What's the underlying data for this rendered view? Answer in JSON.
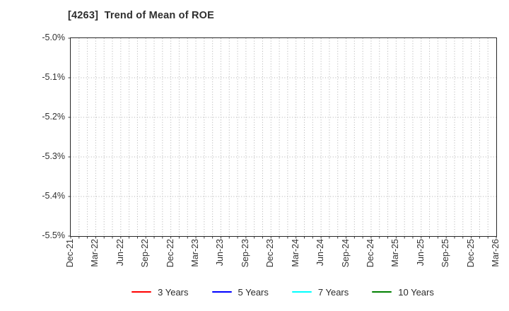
{
  "chart_data": {
    "type": "line",
    "title": "[4263]  Trend of Mean of ROE",
    "x_tick_labels": [
      "Dec-21",
      "Mar-22",
      "Jun-22",
      "Sep-22",
      "Dec-22",
      "Mar-23",
      "Jun-23",
      "Sep-23",
      "Dec-23",
      "Mar-24",
      "Jun-24",
      "Sep-24",
      "Dec-24",
      "Mar-25",
      "Jun-25",
      "Sep-25",
      "Dec-25",
      "Mar-26"
    ],
    "x_minor_divisions_per_interval": 3,
    "y_tick_labels": [
      "-5.0%",
      "-5.1%",
      "-5.2%",
      "-5.3%",
      "-5.4%",
      "-5.5%"
    ],
    "ylim": [
      -5.5,
      -5.0
    ],
    "y_unit": "%",
    "grid": "dotted",
    "legend_position": "bottom",
    "series": [
      {
        "name": "3 Years",
        "color": "#ff0000",
        "values": []
      },
      {
        "name": "5 Years",
        "color": "#0000ff",
        "values": []
      },
      {
        "name": "7 Years",
        "color": "#00ffff",
        "values": []
      },
      {
        "name": "10 Years",
        "color": "#008000",
        "values": []
      }
    ],
    "colors": {
      "grid": "#b0b0b0",
      "axis_border": "#262626",
      "tick": "#262626",
      "title_text": "#2e2e2e",
      "tick_label_text": "#333333"
    }
  }
}
